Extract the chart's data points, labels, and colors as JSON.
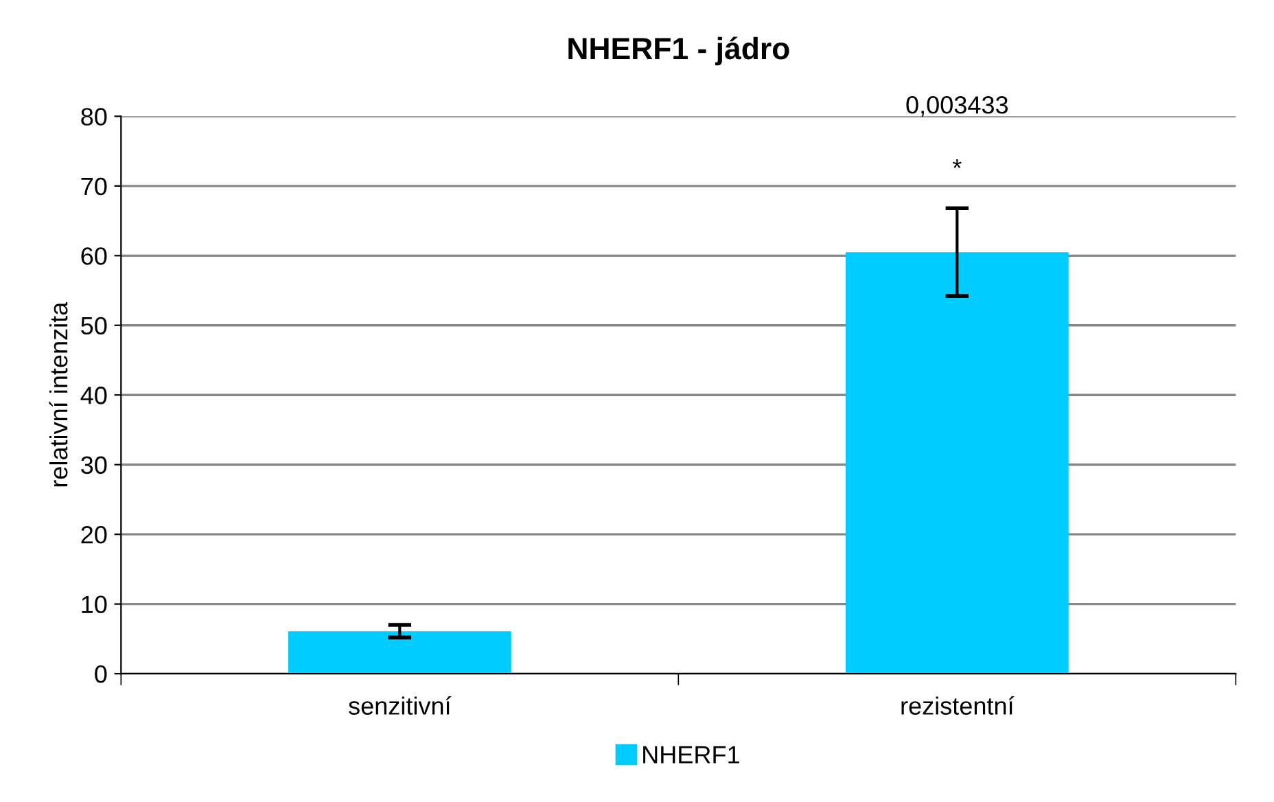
{
  "chart_data": {
    "type": "bar",
    "title": "NHERF1 - jádro",
    "ylabel": "relativní intenzita",
    "categories": [
      "senzitivní",
      "rezistentní"
    ],
    "series": [
      {
        "name": "NHERF1",
        "color": "#00ccff",
        "values": [
          6.1,
          60.5
        ],
        "errors": [
          0.9,
          6.3
        ]
      }
    ],
    "ylim": [
      0,
      80
    ],
    "yticks": [
      0,
      10,
      20,
      30,
      40,
      50,
      60,
      70,
      80
    ],
    "grid": "y",
    "legend": "bottom",
    "annotations": [
      "0,003433",
      "*"
    ]
  }
}
